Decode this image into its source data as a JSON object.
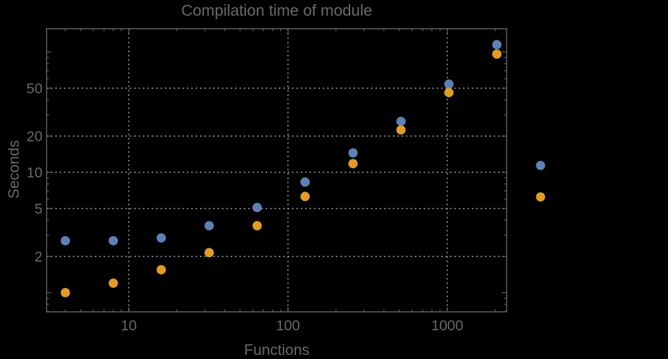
{
  "window": {
    "background": "#000000"
  },
  "style": {
    "frame_color": "#5e5e5e",
    "grid_color": "#888888",
    "text_color": "#696969",
    "series1_color": "#5E81B5",
    "series2_color": "#E09C24"
  },
  "chart_data": {
    "type": "scatter",
    "title": "Compilation time of module",
    "xlabel": "Functions",
    "ylabel": "Seconds",
    "xscale": "log",
    "yscale": "log",
    "xlim": [
      3.05,
      2360
    ],
    "ylim": [
      0.693,
      156
    ],
    "grid": "dotted",
    "legend_position": "outside-right",
    "x_ticks_labeled": [
      10,
      100,
      1000
    ],
    "y_ticks_labeled": [
      2,
      5,
      10,
      20,
      50
    ],
    "y_ticks_unlabeled": [
      1,
      100
    ],
    "x": [
      4,
      8,
      16,
      32,
      64,
      128,
      256,
      512,
      1024,
      2048
    ],
    "series": [
      {
        "name": "series-1-blue",
        "color": "#5E81B5",
        "values": [
          2.7,
          2.7,
          2.85,
          3.6,
          5.1,
          8.3,
          14.5,
          26.5,
          54,
          115
        ]
      },
      {
        "name": "series-2-orange",
        "color": "#E09C24",
        "values": [
          1.0,
          1.2,
          1.55,
          2.15,
          3.6,
          6.3,
          11.8,
          22.5,
          46,
          96
        ]
      }
    ],
    "legend": {
      "marker_colors": [
        "#5E81B5",
        "#E09C24"
      ],
      "labels": [
        "",
        ""
      ]
    }
  }
}
